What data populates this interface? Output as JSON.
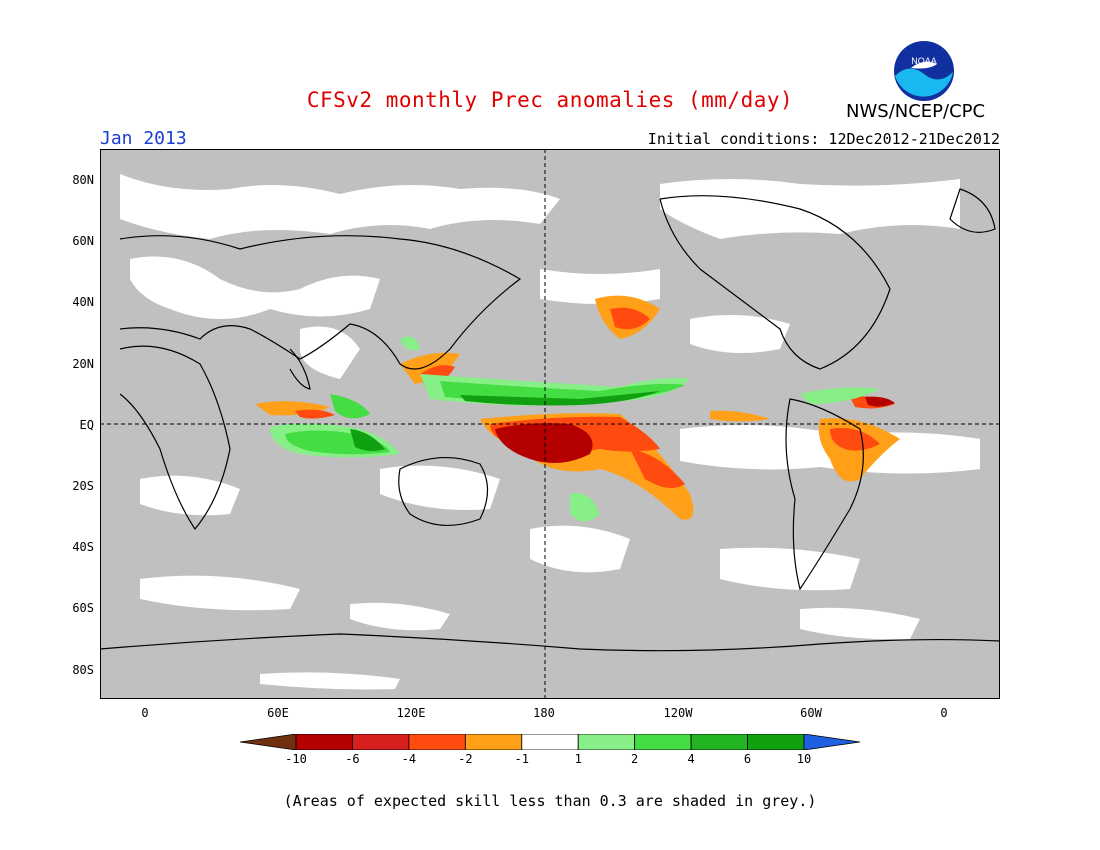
{
  "header": {
    "title": "CFSv2 monthly Prec anomalies (mm/day)",
    "agency": "NWS/NCEP/CPC",
    "logo_text": "NOAA",
    "month": "Jan 2013",
    "initial_conditions": "Initial conditions: 12Dec2012-21Dec2012"
  },
  "map": {
    "lat_labels": [
      "80N",
      "60N",
      "40N",
      "20N",
      "EQ",
      "20S",
      "40S",
      "60S",
      "80S"
    ],
    "lon_labels": [
      "0",
      "60E",
      "120E",
      "180",
      "120W",
      "60W",
      "0"
    ],
    "projection": "cylindrical equidistant, centered on 180",
    "grey_mask_meaning": "skill < 0.3",
    "colors": {
      "ocean_grey": "#c0c0c0",
      "land_white": "#ffffff",
      "coast": "#000000"
    }
  },
  "colorbar": {
    "labels": [
      "-10",
      "-6",
      "-4",
      "-2",
      "-1",
      "1",
      "2",
      "4",
      "6",
      "10"
    ],
    "colors": [
      "#703010",
      "#b40000",
      "#d82020",
      "#ff4a10",
      "#ffa018",
      "#ffffff",
      "#88ee88",
      "#44dd44",
      "#22b422",
      "#10a010",
      "#2060e0"
    ]
  },
  "footnote": "(Areas of expected skill less than 0.3 are shaded in grey.)"
}
